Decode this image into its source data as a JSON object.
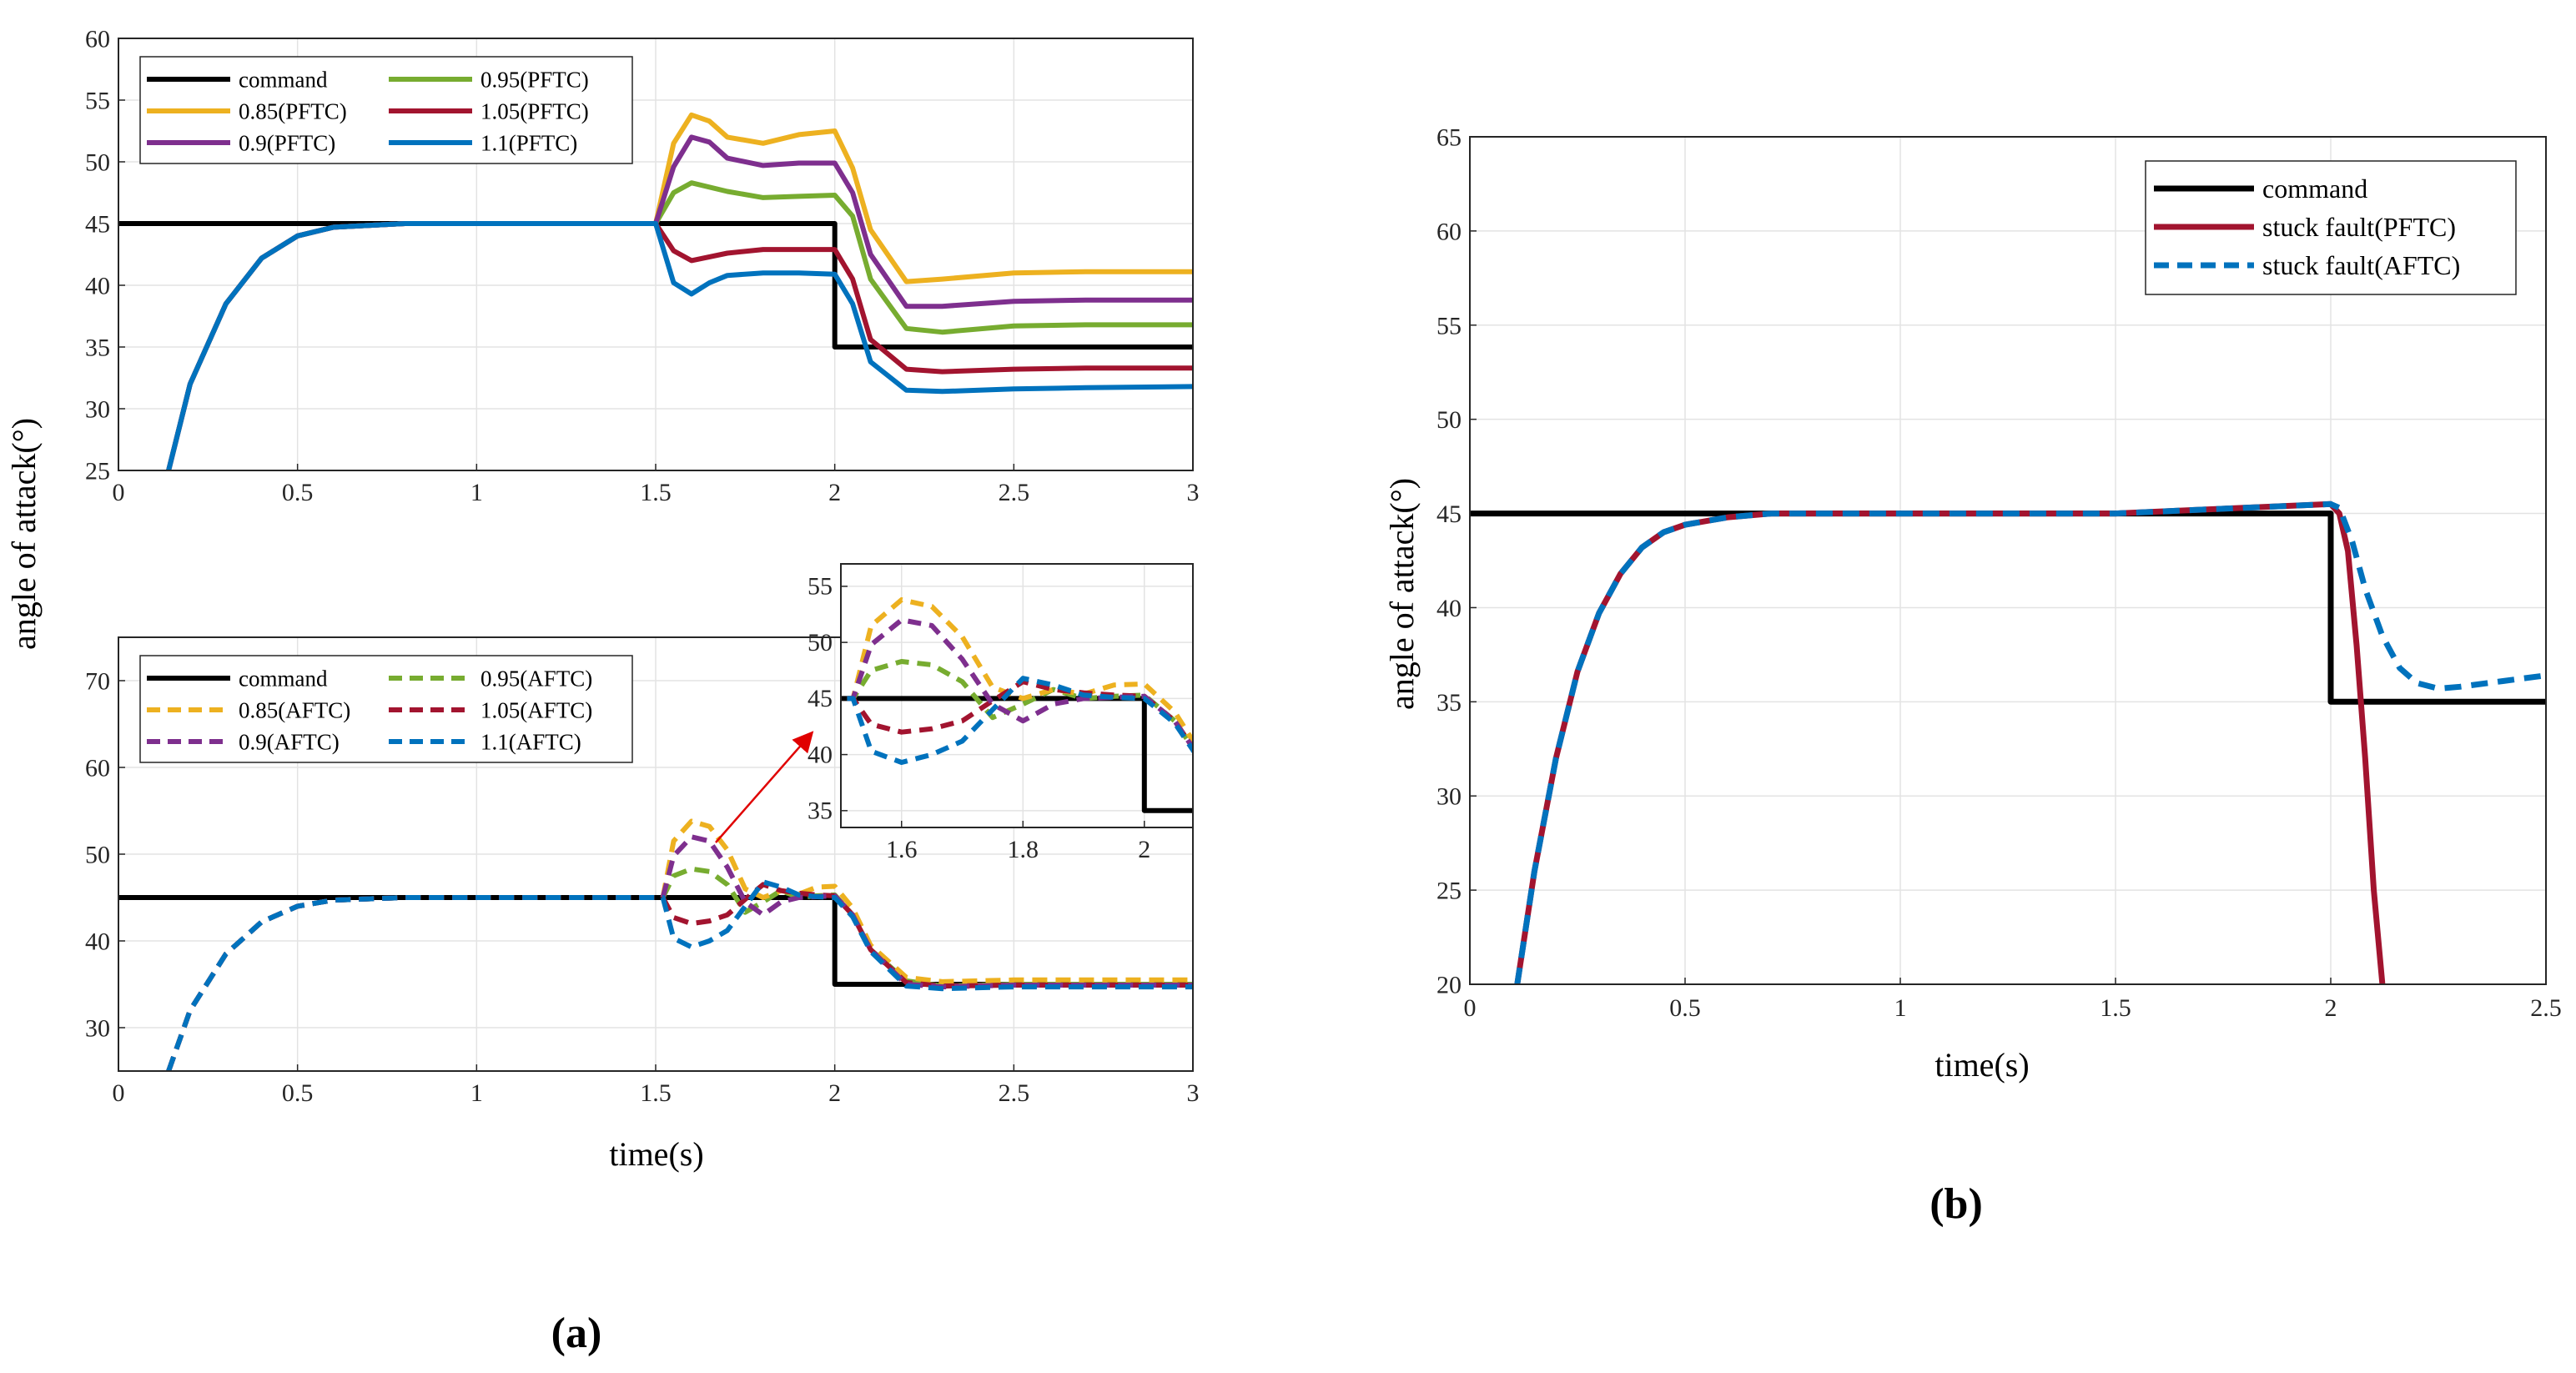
{
  "figure": {
    "panel_a_label": "(a)",
    "panel_b_label": "(b)",
    "shared_ylabel": "angle of attack(°)",
    "colors": {
      "command": "#000000",
      "0.85": "#EDB120",
      "0.9": "#7E2F8E",
      "0.95": "#77AC30",
      "1.05": "#A2142F",
      "1.1": "#0072BD",
      "grid": "#e3e3e3",
      "arrow": "#e00000"
    }
  },
  "chart_data": [
    {
      "id": "a_top",
      "type": "line",
      "xlabel": "",
      "ylabel": "",
      "xlim": [
        0,
        3
      ],
      "ylim": [
        25,
        60
      ],
      "xticks": [
        "0",
        "0.5",
        "1",
        "1.5",
        "2",
        "2.5",
        "3"
      ],
      "yticks": [
        "25",
        "30",
        "35",
        "40",
        "45",
        "50",
        "55",
        "60"
      ],
      "grid": true,
      "legend_position": "top-left",
      "legend_columns": 2,
      "series": [
        {
          "name": "command",
          "color": "#000000",
          "style": "solid",
          "x": [
            0,
            2,
            2,
            3
          ],
          "y": [
            45,
            45,
            35,
            35
          ]
        },
        {
          "name": "0.95(PFTC)",
          "color": "#77AC30",
          "style": "solid",
          "x": [
            0.14,
            0.2,
            0.3,
            0.4,
            0.5,
            0.6,
            0.8,
            1.0,
            1.2,
            1.5,
            1.55,
            1.6,
            1.7,
            1.8,
            1.9,
            2.0,
            2.05,
            2.1,
            2.2,
            2.3,
            2.5,
            2.7,
            3.0
          ],
          "y": [
            25,
            32,
            38.5,
            42.2,
            44,
            44.7,
            45,
            45,
            45,
            45,
            47.5,
            48.3,
            47.6,
            47.1,
            47.2,
            47.3,
            45.6,
            40.5,
            36.5,
            36.2,
            36.7,
            36.8,
            36.8
          ]
        },
        {
          "name": "0.85(PFTC)",
          "color": "#EDB120",
          "style": "solid",
          "x": [
            0.14,
            0.2,
            0.3,
            0.4,
            0.5,
            0.6,
            0.8,
            1.0,
            1.2,
            1.5,
            1.55,
            1.6,
            1.65,
            1.7,
            1.8,
            1.9,
            2.0,
            2.05,
            2.1,
            2.2,
            2.3,
            2.5,
            2.7,
            3.0
          ],
          "y": [
            25,
            32,
            38.5,
            42.2,
            44,
            44.7,
            45,
            45,
            45,
            45,
            51.5,
            53.8,
            53.3,
            52,
            51.5,
            52.2,
            52.5,
            49.5,
            44.5,
            40.3,
            40.5,
            41,
            41.1,
            41.1
          ]
        },
        {
          "name": "1.05(PFTC)",
          "color": "#A2142F",
          "style": "solid",
          "x": [
            0.14,
            0.2,
            0.3,
            0.4,
            0.5,
            0.6,
            0.8,
            1.0,
            1.2,
            1.5,
            1.55,
            1.6,
            1.7,
            1.8,
            1.9,
            2.0,
            2.05,
            2.1,
            2.2,
            2.3,
            2.5,
            2.7,
            3.0
          ],
          "y": [
            25,
            32,
            38.5,
            42.2,
            44,
            44.7,
            45,
            45,
            45,
            45,
            42.8,
            42,
            42.6,
            42.9,
            42.9,
            42.9,
            40.5,
            35.6,
            33.2,
            33,
            33.2,
            33.3,
            33.3
          ]
        },
        {
          "name": "0.9(PFTC)",
          "color": "#7E2F8E",
          "style": "solid",
          "x": [
            0.14,
            0.2,
            0.3,
            0.4,
            0.5,
            0.6,
            0.8,
            1.0,
            1.2,
            1.5,
            1.55,
            1.6,
            1.65,
            1.7,
            1.8,
            1.9,
            2.0,
            2.05,
            2.1,
            2.2,
            2.3,
            2.5,
            2.7,
            3.0
          ],
          "y": [
            25,
            32,
            38.5,
            42.2,
            44,
            44.7,
            45,
            45,
            45,
            45,
            49.6,
            52,
            51.6,
            50.3,
            49.7,
            49.9,
            49.9,
            47.5,
            42.5,
            38.3,
            38.3,
            38.7,
            38.8,
            38.8
          ]
        },
        {
          "name": "1.1(PFTC)",
          "color": "#0072BD",
          "style": "solid",
          "x": [
            0.14,
            0.2,
            0.3,
            0.4,
            0.5,
            0.6,
            0.8,
            1.0,
            1.2,
            1.5,
            1.55,
            1.6,
            1.65,
            1.7,
            1.8,
            1.9,
            2.0,
            2.05,
            2.1,
            2.2,
            2.3,
            2.5,
            2.7,
            3.0
          ],
          "y": [
            25,
            32,
            38.5,
            42.2,
            44,
            44.7,
            45,
            45,
            45,
            45,
            40.2,
            39.3,
            40.2,
            40.8,
            41,
            41,
            40.9,
            38.5,
            33.8,
            31.5,
            31.4,
            31.6,
            31.7,
            31.8
          ]
        }
      ]
    },
    {
      "id": "a_bottom",
      "type": "line",
      "xlabel": "time(s)",
      "ylabel": "",
      "xlim": [
        0,
        3
      ],
      "ylim": [
        25,
        75
      ],
      "xticks": [
        "0",
        "0.5",
        "1",
        "1.5",
        "2",
        "2.5",
        "3"
      ],
      "yticks": [
        "30",
        "40",
        "50",
        "60",
        "70"
      ],
      "grid": true,
      "legend_position": "top-left",
      "legend_columns": 2,
      "series": [
        {
          "name": "command",
          "color": "#000000",
          "style": "solid",
          "x": [
            0,
            2,
            2,
            3
          ],
          "y": [
            45,
            45,
            35,
            35
          ]
        },
        {
          "name": "0.95(AFTC)",
          "color": "#77AC30",
          "style": "dashed",
          "x": [
            0.14,
            0.2,
            0.3,
            0.4,
            0.5,
            0.6,
            0.8,
            1.0,
            1.2,
            1.52,
            1.55,
            1.6,
            1.65,
            1.7,
            1.75,
            1.8,
            1.85,
            1.9,
            1.95,
            2.0,
            2.05,
            2.1,
            2.2,
            2.3,
            2.5,
            2.7,
            3.0
          ],
          "y": [
            25,
            32,
            38.5,
            42.2,
            44,
            44.7,
            45,
            45,
            45,
            45,
            47.5,
            48.3,
            48,
            46.5,
            43.3,
            44.5,
            45.8,
            45,
            45.2,
            45.3,
            43,
            39,
            35.4,
            34.8,
            35,
            35,
            35
          ]
        },
        {
          "name": "0.85(AFTC)",
          "color": "#EDB120",
          "style": "dashed",
          "x": [
            0.14,
            0.2,
            0.3,
            0.4,
            0.5,
            0.6,
            0.8,
            1.0,
            1.2,
            1.52,
            1.55,
            1.6,
            1.65,
            1.7,
            1.75,
            1.8,
            1.85,
            1.9,
            1.95,
            2.0,
            2.05,
            2.1,
            2.2,
            2.3,
            2.5,
            2.7,
            3.0
          ],
          "y": [
            25,
            32,
            38.5,
            42.2,
            44,
            44.7,
            45,
            45,
            45,
            45,
            51.5,
            53.8,
            53.2,
            50.5,
            46,
            45,
            45.8,
            45.4,
            46.2,
            46.3,
            43.8,
            39.5,
            35.8,
            35.3,
            35.5,
            35.5,
            35.5
          ]
        },
        {
          "name": "1.05(AFTC)",
          "color": "#A2142F",
          "style": "dashed",
          "x": [
            0.14,
            0.2,
            0.3,
            0.4,
            0.5,
            0.6,
            0.8,
            1.0,
            1.2,
            1.52,
            1.55,
            1.6,
            1.65,
            1.7,
            1.75,
            1.8,
            1.85,
            1.9,
            1.95,
            2.0,
            2.05,
            2.1,
            2.2,
            2.3,
            2.5,
            2.7,
            3.0
          ],
          "y": [
            25,
            32,
            38.5,
            42.2,
            44,
            44.7,
            45,
            45,
            45,
            45,
            42.7,
            42,
            42.3,
            43,
            44.8,
            46.5,
            45.8,
            45.5,
            45.3,
            45.2,
            43,
            39,
            35.2,
            34.8,
            34.9,
            34.9,
            34.9
          ]
        },
        {
          "name": "0.9(AFTC)",
          "color": "#7E2F8E",
          "style": "dashed",
          "x": [
            0.14,
            0.2,
            0.3,
            0.4,
            0.5,
            0.6,
            0.8,
            1.0,
            1.2,
            1.52,
            1.55,
            1.6,
            1.65,
            1.7,
            1.75,
            1.8,
            1.85,
            1.9,
            1.95,
            2.0,
            2.05,
            2.1,
            2.2,
            2.3,
            2.5,
            2.7,
            3.0
          ],
          "y": [
            25,
            32,
            38.5,
            42.2,
            44,
            44.7,
            45,
            45,
            45,
            45,
            49.8,
            52,
            51.5,
            48.5,
            44.5,
            43,
            44.5,
            45,
            45.1,
            45.2,
            43,
            39,
            35,
            34.7,
            34.9,
            34.9,
            34.9
          ]
        },
        {
          "name": "1.1(AFTC)",
          "color": "#0072BD",
          "style": "dashed",
          "x": [
            0.14,
            0.2,
            0.3,
            0.4,
            0.5,
            0.6,
            0.8,
            1.0,
            1.2,
            1.52,
            1.55,
            1.6,
            1.65,
            1.7,
            1.75,
            1.8,
            1.85,
            1.9,
            1.95,
            2.0,
            2.05,
            2.1,
            2.2,
            2.3,
            2.5,
            2.7,
            3.0
          ],
          "y": [
            25,
            32,
            38.5,
            42.2,
            44,
            44.7,
            45,
            45,
            45,
            45,
            40.3,
            39.3,
            40,
            41.2,
            44,
            46.8,
            46.2,
            45.3,
            45.1,
            45,
            42.8,
            38.8,
            34.8,
            34.5,
            34.7,
            34.7,
            34.7
          ]
        }
      ]
    },
    {
      "id": "a_inset",
      "type": "line",
      "xlim": [
        1.5,
        2.08
      ],
      "ylim": [
        33.5,
        57
      ],
      "xticks": [
        "1.6",
        "1.8",
        "2"
      ],
      "yticks": [
        "35",
        "40",
        "45",
        "50",
        "55"
      ],
      "grid": true,
      "series_ref": "a_bottom"
    },
    {
      "id": "b",
      "type": "line",
      "xlabel": "time(s)",
      "ylabel": "angle of attack(°)",
      "xlim": [
        0,
        2.5
      ],
      "ylim": [
        20,
        65
      ],
      "xticks": [
        "0",
        "0.5",
        "1",
        "1.5",
        "2",
        "2.5"
      ],
      "yticks": [
        "20",
        "25",
        "30",
        "35",
        "40",
        "45",
        "50",
        "55",
        "60",
        "65"
      ],
      "grid": true,
      "legend_position": "top-right",
      "series": [
        {
          "name": "command",
          "color": "#000000",
          "style": "solid",
          "x": [
            0,
            2,
            2,
            2.5
          ],
          "y": [
            45,
            45,
            35,
            35
          ]
        },
        {
          "name": "stuck fault(PFTC)",
          "color": "#A2142F",
          "style": "solid",
          "x": [
            0.11,
            0.15,
            0.2,
            0.25,
            0.3,
            0.35,
            0.4,
            0.45,
            0.5,
            0.6,
            0.7,
            0.8,
            1.0,
            1.2,
            1.5,
            1.7,
            1.9,
            2.0,
            2.02,
            2.04,
            2.06,
            2.08,
            2.1,
            2.12
          ],
          "y": [
            20,
            26,
            32,
            36.6,
            39.7,
            41.8,
            43.2,
            44,
            44.4,
            44.8,
            45,
            45,
            45,
            45,
            45,
            45.2,
            45.4,
            45.5,
            45,
            43,
            38,
            32,
            25,
            20
          ]
        },
        {
          "name": "stuck fault(AFTC)",
          "color": "#0072BD",
          "style": "dashed",
          "x": [
            0.11,
            0.15,
            0.2,
            0.25,
            0.3,
            0.35,
            0.4,
            0.45,
            0.5,
            0.6,
            0.7,
            0.8,
            1.0,
            1.2,
            1.5,
            1.7,
            1.9,
            2.0,
            2.02,
            2.05,
            2.08,
            2.12,
            2.16,
            2.2,
            2.25,
            2.3,
            2.4,
            2.5
          ],
          "y": [
            20,
            26,
            32,
            36.6,
            39.7,
            41.8,
            43.2,
            44,
            44.4,
            44.8,
            45,
            45,
            45,
            45,
            45,
            45.2,
            45.4,
            45.5,
            45.3,
            43.5,
            41,
            38.5,
            36.8,
            36,
            35.7,
            35.8,
            36.1,
            36.4
          ]
        }
      ]
    }
  ]
}
